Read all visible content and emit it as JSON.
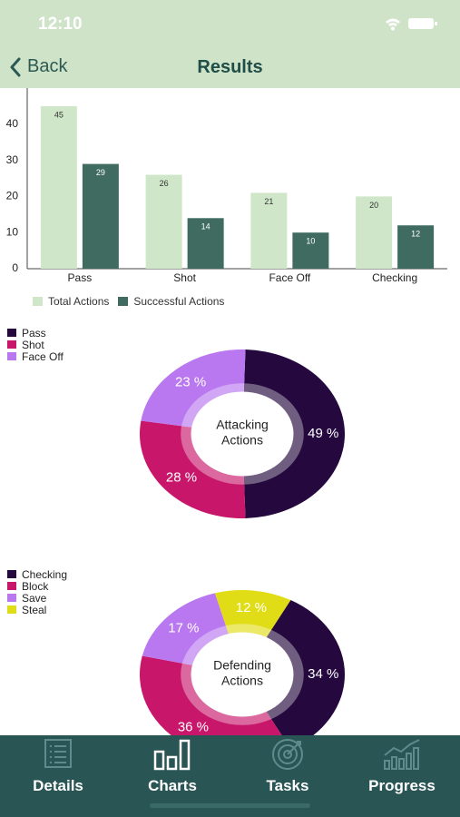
{
  "status": {
    "time": "12:10"
  },
  "nav": {
    "back_label": "Back",
    "title": "Results"
  },
  "colors": {
    "header_bg": "#cfe3c9",
    "total_actions": "#cfe6c8",
    "successful_actions": "#3f6b60",
    "tabbar_bg": "#2a5555",
    "pass": "#24083e",
    "shot": "#c8176a",
    "face_off": "#b978f0",
    "steal": "#e0dd16"
  },
  "chart_data": [
    {
      "type": "bar",
      "categories": [
        "Pass",
        "Shot",
        "Face Off",
        "Checking"
      ],
      "series": [
        {
          "name": "Total Actions",
          "values": [
            45,
            26,
            21,
            20
          ]
        },
        {
          "name": "Successful Actions",
          "values": [
            29,
            14,
            10,
            12
          ]
        }
      ],
      "ylim": [
        0,
        48
      ],
      "yticks": [
        0,
        10,
        20,
        30,
        40
      ],
      "legend": "bottom-left"
    },
    {
      "type": "pie",
      "title": "Attacking Actions",
      "labels": [
        "Pass",
        "Shot",
        "Face Off"
      ],
      "values": [
        49,
        28,
        23
      ],
      "value_labels": [
        "49 %",
        "28 %",
        "23 %"
      ],
      "legend": "top-left"
    },
    {
      "type": "pie",
      "title": "Defending Actions",
      "labels": [
        "Checking",
        "Block",
        "Save",
        "Steal"
      ],
      "values": [
        34,
        36,
        17,
        12
      ],
      "value_labels": [
        "34 %",
        "36 %",
        "17 %",
        "12 %"
      ],
      "legend": "top-left"
    }
  ],
  "tabs": [
    {
      "label": "Details",
      "icon": "list-icon"
    },
    {
      "label": "Charts",
      "icon": "bar-chart-icon"
    },
    {
      "label": "Tasks",
      "icon": "target-icon"
    },
    {
      "label": "Progress",
      "icon": "growth-chart-icon"
    }
  ]
}
